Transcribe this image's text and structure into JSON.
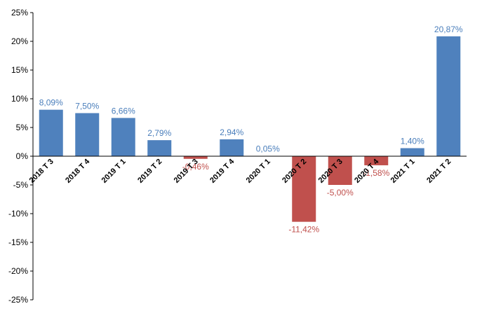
{
  "chart_data": {
    "type": "bar",
    "title": "",
    "xlabel": "",
    "ylabel": "",
    "ylim": [
      -25,
      25
    ],
    "yticks": [
      -25,
      -20,
      -15,
      -10,
      -5,
      0,
      5,
      10,
      15,
      20,
      25
    ],
    "ytick_labels": [
      "-25%",
      "-20%",
      "-15%",
      "-10%",
      "-5%",
      "0%",
      "5%",
      "10%",
      "15%",
      "20%",
      "25%"
    ],
    "grid": false,
    "categories": [
      "2018 T 3",
      "2018 T 4",
      "2019 T 1",
      "2019 T 2",
      "2019 T 3",
      "2019 T 4",
      "2020 T 1",
      "2020 T 2",
      "2020 T 3",
      "2020 T 4",
      "2021 T 1",
      "2021 T 2"
    ],
    "values": [
      8.09,
      7.5,
      6.66,
      2.79,
      -0.46,
      2.94,
      0.05,
      -11.42,
      -5.0,
      -1.58,
      1.4,
      20.87
    ],
    "data_labels": [
      "8,09%",
      "7,50%",
      "6,66%",
      "2,79%",
      "-0,46%",
      "2,94%",
      "0,05%",
      "-11,42%",
      "-5,00%",
      "-1,58%",
      "1,40%",
      "20,87%"
    ],
    "colors": {
      "positive_bar": "#4F81BD",
      "negative_bar": "#C0504D",
      "positive_label": "#4A7EBB",
      "negative_label": "#C0504D",
      "axis": "#000000"
    }
  }
}
